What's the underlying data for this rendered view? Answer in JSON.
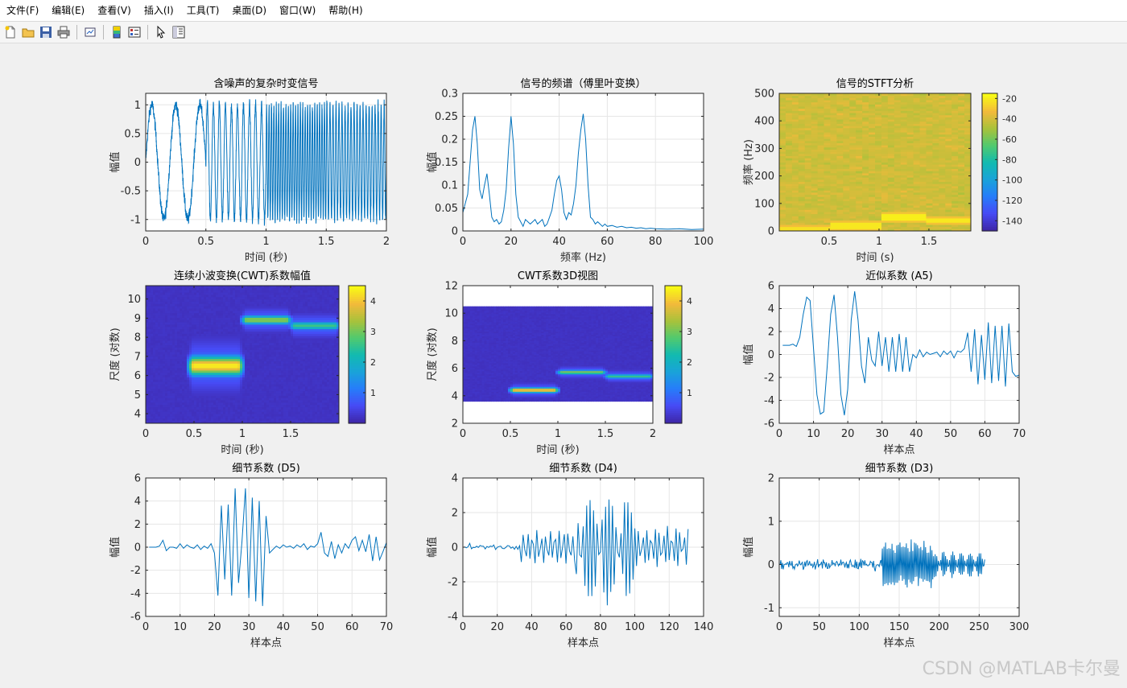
{
  "menu": [
    "文件(F)",
    "编辑(E)",
    "查看(V)",
    "插入(I)",
    "工具(T)",
    "桌面(D)",
    "窗口(W)",
    "帮助(H)"
  ],
  "toolbar": [
    "new-file-icon",
    "open-folder-icon",
    "save-icon",
    "print-icon",
    "link-plot-icon",
    "insert-colorbar-icon",
    "insert-legend-icon",
    "pointer-icon",
    "property-inspector-icon"
  ],
  "watermark": "CSDN @MATLAB卡尔曼",
  "colors": {
    "line": "#0072bd",
    "axis": "#262626",
    "grid": "#e6e6e6",
    "figure_bg": "#f0f0f0"
  },
  "chart_data": [
    {
      "id": "signal",
      "type": "line",
      "title": "含噪声的复杂时变信号",
      "xlabel": "时间 (秒)",
      "ylabel": "幅值",
      "xlim": [
        0,
        2
      ],
      "ylim": [
        -1.2,
        1.2
      ],
      "xticks": [
        0,
        0.5,
        1,
        1.5,
        2
      ],
      "xticklabels": [
        "0",
        "0.5",
        "1",
        "1.5",
        "2"
      ],
      "yticks": [
        -1,
        -0.5,
        0,
        0.5,
        1
      ],
      "yticklabels": [
        "-1",
        "-0.5",
        "0",
        "0.5",
        "1"
      ],
      "grid": true,
      "noise": 0.1,
      "segments": [
        {
          "from": 0,
          "to": 0.5,
          "freq_hz": 5,
          "amp": 1
        },
        {
          "from": 0.5,
          "to": 1,
          "freq_hz": 20,
          "amp": 1
        },
        {
          "from": 1,
          "to": 1.5,
          "freq_hz": 50,
          "amp": 1
        },
        {
          "from": 1.5,
          "to": 2,
          "freq_hz": 40,
          "amp": 1
        }
      ]
    },
    {
      "id": "spectrum",
      "type": "line",
      "title": "信号的频谱（傅里叶变换）",
      "xlabel": "频率 (Hz)",
      "ylabel": "幅值",
      "xlim": [
        0,
        100
      ],
      "ylim": [
        0,
        0.3
      ],
      "xticks": [
        0,
        20,
        40,
        60,
        80,
        100
      ],
      "xticklabels": [
        "0",
        "20",
        "40",
        "60",
        "80",
        "100"
      ],
      "yticks": [
        0,
        0.05,
        0.1,
        0.15,
        0.2,
        0.25,
        0.3
      ],
      "yticklabels": [
        "0",
        "0.05",
        "0.1",
        "0.15",
        "0.2",
        "0.25",
        "0.3"
      ],
      "grid": true,
      "x": [
        0,
        1,
        2,
        3,
        4,
        5,
        6,
        7,
        8,
        9,
        10,
        11,
        12,
        13,
        14,
        15,
        16,
        17,
        18,
        19,
        20,
        21,
        22,
        23,
        24,
        25,
        26,
        27,
        28,
        29,
        30,
        31,
        32,
        33,
        34,
        35,
        36,
        37,
        38,
        39,
        40,
        41,
        42,
        43,
        44,
        45,
        46,
        47,
        48,
        49,
        50,
        51,
        52,
        53,
        54,
        55,
        56,
        57,
        58,
        59,
        60,
        62,
        64,
        66,
        68,
        70,
        72,
        74,
        76,
        78,
        80,
        85,
        90,
        95,
        100
      ],
      "y": [
        0.04,
        0.06,
        0.08,
        0.15,
        0.22,
        0.25,
        0.19,
        0.09,
        0.07,
        0.1,
        0.125,
        0.08,
        0.03,
        0.02,
        0.025,
        0.015,
        0.02,
        0.045,
        0.09,
        0.18,
        0.25,
        0.19,
        0.08,
        0.03,
        0.02,
        0.01,
        0.025,
        0.02,
        0.015,
        0.02,
        0.025,
        0.015,
        0.02,
        0.025,
        0.01,
        0.015,
        0.03,
        0.045,
        0.08,
        0.11,
        0.12,
        0.09,
        0.04,
        0.025,
        0.04,
        0.035,
        0.06,
        0.1,
        0.17,
        0.22,
        0.255,
        0.2,
        0.1,
        0.03,
        0.025,
        0.015,
        0.02,
        0.015,
        0.01,
        0.015,
        0.01,
        0.012,
        0.008,
        0.01,
        0.007,
        0.008,
        0.006,
        0.007,
        0.005,
        0.006,
        0.005,
        0.004,
        0.005,
        0.003,
        0.004
      ]
    },
    {
      "id": "stft",
      "type": "heatmap",
      "title": "信号的STFT分析",
      "xlabel": "时间 (s)",
      "ylabel": "频率 (Hz)",
      "xlim": [
        0,
        1.92
      ],
      "ylim": [
        0,
        500
      ],
      "xticks": [
        0.5,
        1,
        1.5
      ],
      "xticklabels": [
        "0.5",
        "1",
        "1.5"
      ],
      "yticks": [
        0,
        100,
        200,
        300,
        400,
        500
      ],
      "yticklabels": [
        "0",
        "100",
        "200",
        "300",
        "400",
        "500"
      ],
      "colorbar": {
        "range": [
          -150,
          -15
        ],
        "ticks": [
          -20,
          -40,
          -60,
          -80,
          -100,
          -120,
          -140
        ],
        "ticklabels": [
          "-20",
          "-40",
          "-60",
          "-80",
          "-100",
          "-120",
          "-140"
        ]
      },
      "background_db": -40,
      "ridges": [
        {
          "from": 0,
          "to": 0.5,
          "freq_hz": 5,
          "db": -22
        },
        {
          "from": 0.5,
          "to": 1,
          "freq_hz": 20,
          "db": -20
        },
        {
          "from": 1,
          "to": 1.5,
          "freq_hz": 50,
          "db": -18
        },
        {
          "from": 1.5,
          "to": 1.92,
          "freq_hz": 40,
          "db": -20
        }
      ]
    },
    {
      "id": "cwt",
      "type": "heatmap",
      "title": "连续小波变换(CWT)系数幅值",
      "xlabel": "时间 (秒)",
      "ylabel": "尺度 (对数)",
      "xlim": [
        0,
        2
      ],
      "ylim": [
        3.5,
        10.7
      ],
      "xticks": [
        0,
        0.5,
        1,
        1.5
      ],
      "xticklabels": [
        "0",
        "0.5",
        "1",
        "1.5"
      ],
      "yticks": [
        4,
        5,
        6,
        7,
        8,
        9,
        10
      ],
      "yticklabels": [
        "4",
        "5",
        "6",
        "7",
        "8",
        "9",
        "10"
      ],
      "colorbar": {
        "range": [
          0,
          4.5
        ],
        "ticks": [
          1,
          2,
          3,
          4
        ],
        "ticklabels": [
          "1",
          "2",
          "3",
          "4"
        ]
      },
      "blobs": [
        {
          "t_from": 0.45,
          "t_to": 1.0,
          "center": 6.5,
          "width": 0.5,
          "value": 4.4
        },
        {
          "t_from": 1.0,
          "t_to": 1.5,
          "center": 8.9,
          "width": 0.22,
          "value": 3.3
        },
        {
          "t_from": 1.5,
          "t_to": 2.0,
          "center": 8.6,
          "width": 0.22,
          "value": 2.6
        }
      ]
    },
    {
      "id": "cwt3d",
      "type": "heatmap",
      "title": "CWT系数3D视图",
      "xlabel": "时间 (秒)",
      "ylabel": "尺度 (对数)",
      "xlim": [
        0,
        2
      ],
      "ylim": [
        2,
        12
      ],
      "xticks": [
        0,
        0.5,
        1,
        1.5,
        2
      ],
      "xticklabels": [
        "0",
        "0.5",
        "1",
        "1.5",
        "2"
      ],
      "yticks": [
        2,
        4,
        6,
        8,
        10,
        12
      ],
      "yticklabels": [
        "2",
        "4",
        "6",
        "8",
        "10",
        "12"
      ],
      "data_extent": {
        "t": [
          0,
          2
        ],
        "scale": [
          3.6,
          10.5
        ]
      },
      "colorbar": {
        "range": [
          0,
          4.5
        ],
        "ticks": [
          1,
          2,
          3,
          4
        ],
        "ticklabels": [
          "1",
          "2",
          "3",
          "4"
        ]
      },
      "blobs": [
        {
          "t_from": 0.5,
          "t_to": 1.0,
          "center": 4.4,
          "width": 0.18,
          "value": 4.2
        },
        {
          "t_from": 1.0,
          "t_to": 1.5,
          "center": 5.7,
          "width": 0.15,
          "value": 3.2
        },
        {
          "t_from": 1.5,
          "t_to": 2.0,
          "center": 5.4,
          "width": 0.15,
          "value": 2.6
        }
      ]
    },
    {
      "id": "a5",
      "type": "line",
      "title": "近似系数 (A5)",
      "xlabel": "样本点",
      "ylabel": "幅值",
      "xlim": [
        0,
        70
      ],
      "ylim": [
        -6,
        6
      ],
      "xticks": [
        0,
        10,
        20,
        30,
        40,
        50,
        60,
        70
      ],
      "xticklabels": [
        "0",
        "10",
        "20",
        "30",
        "40",
        "50",
        "60",
        "70"
      ],
      "yticks": [
        -6,
        -4,
        -2,
        0,
        2,
        4,
        6
      ],
      "yticklabels": [
        "-6",
        "-4",
        "-2",
        "0",
        "2",
        "4",
        "6"
      ],
      "grid": true,
      "y": [
        0.8,
        0.8,
        0.8,
        0.9,
        0.7,
        1.5,
        3.5,
        5.0,
        4.7,
        0.5,
        -3.5,
        -5.2,
        -5.0,
        -1.0,
        3.5,
        5.2,
        1.5,
        -3.5,
        -5.3,
        -3.0,
        3.0,
        5.5,
        3.0,
        -1.0,
        -2.5,
        1.5,
        -0.5,
        -1.0,
        2.0,
        -1.0,
        1.5,
        -1.5,
        1.5,
        -1.5,
        1.8,
        -1.5,
        1.5,
        -1.5,
        0.0,
        -0.3,
        0.4,
        -0.2,
        0.2,
        0.0,
        0.1,
        0.2,
        -0.2,
        0.3,
        0.0,
        0.3,
        -0.3,
        0.3,
        0.2,
        0.5,
        1.9,
        -1.5,
        2.2,
        -2.6,
        1.7,
        -2.2,
        2.8,
        -2.5,
        2.5,
        -2.3,
        2.5,
        -2.8,
        2.7,
        -1.5,
        -1.9,
        -1.8,
        -1.3
      ]
    },
    {
      "id": "d5",
      "type": "line",
      "title": "细节系数 (D5)",
      "xlabel": "样本点",
      "ylabel": "幅值",
      "xlim": [
        0,
        70
      ],
      "ylim": [
        -6,
        6
      ],
      "xticks": [
        0,
        10,
        20,
        30,
        40,
        50,
        60,
        70
      ],
      "xticklabels": [
        "0",
        "10",
        "20",
        "30",
        "40",
        "50",
        "60",
        "70"
      ],
      "yticks": [
        -6,
        -4,
        -2,
        0,
        2,
        4,
        6
      ],
      "yticklabels": [
        "-6",
        "-4",
        "-2",
        "0",
        "2",
        "4",
        "6"
      ],
      "grid": true,
      "y": [
        0.0,
        0.0,
        0.0,
        0.1,
        0.6,
        -0.3,
        0.0,
        0.0,
        -0.1,
        0.3,
        -0.1,
        0.2,
        0.0,
        -0.1,
        0.2,
        -0.2,
        0.1,
        -0.1,
        0.3,
        -0.5,
        -4.2,
        3.6,
        -2.8,
        3.7,
        -4.2,
        5.1,
        -3.1,
        0.5,
        5.1,
        -4.4,
        4.3,
        -4.7,
        4.0,
        -5.1,
        2.7,
        -0.5,
        -0.2,
        0.1,
        -0.1,
        0.2,
        0.0,
        0.1,
        -0.1,
        0.2,
        0.0,
        0.3,
        -0.2,
        0.1,
        0.0,
        0.3,
        1.3,
        -0.5,
        -0.8,
        0.5,
        -1.0,
        0.2,
        -0.5,
        0.3,
        -0.1,
        0.6,
        0.9,
        -0.3,
        0.6,
        -0.4,
        1.1,
        -1.2,
        0.9,
        -1.1,
        -0.4,
        0.4,
        1.0
      ]
    },
    {
      "id": "d4",
      "type": "line",
      "title": "细节系数 (D4)",
      "xlabel": "样本点",
      "ylabel": "幅值",
      "xlim": [
        0,
        140
      ],
      "ylim": [
        -4,
        4
      ],
      "xticks": [
        0,
        20,
        40,
        60,
        80,
        100,
        120,
        140
      ],
      "xticklabels": [
        "0",
        "20",
        "40",
        "60",
        "80",
        "100",
        "120",
        "140"
      ],
      "yticks": [
        -4,
        -2,
        0,
        2,
        4
      ],
      "yticklabels": [
        "-4",
        "-2",
        "0",
        "2",
        "4"
      ],
      "grid": true,
      "segments": [
        {
          "from": 0,
          "to": 33,
          "amp": 0.2,
          "kind": "noise"
        },
        {
          "from": 33,
          "to": 65,
          "amp": 1.0,
          "period": 2.6,
          "kind": "osc"
        },
        {
          "from": 65,
          "to": 99,
          "amp": 3.3,
          "period": 2.2,
          "kind": "osc"
        },
        {
          "from": 99,
          "to": 131,
          "amp": 1.3,
          "period": 2.4,
          "kind": "osc"
        }
      ]
    },
    {
      "id": "d3",
      "type": "line",
      "title": "细节系数 (D3)",
      "xlabel": "样本点",
      "ylabel": "幅值",
      "xlim": [
        0,
        300
      ],
      "ylim": [
        -1.2,
        2
      ],
      "xticks": [
        0,
        50,
        100,
        150,
        200,
        250,
        300
      ],
      "xticklabels": [
        "0",
        "50",
        "100",
        "150",
        "200",
        "250",
        "300"
      ],
      "yticks": [
        -1,
        0,
        1,
        2
      ],
      "yticklabels": [
        "-1",
        "0",
        "1",
        "2"
      ],
      "grid": true,
      "segments": [
        {
          "from": 0,
          "to": 128,
          "amp": 0.12,
          "kind": "noise"
        },
        {
          "from": 128,
          "to": 192,
          "amp": 1.2,
          "period": 2.0,
          "kind": "osc"
        },
        {
          "from": 192,
          "to": 257,
          "amp": 0.3,
          "period": 2.2,
          "kind": "osc"
        }
      ]
    }
  ]
}
